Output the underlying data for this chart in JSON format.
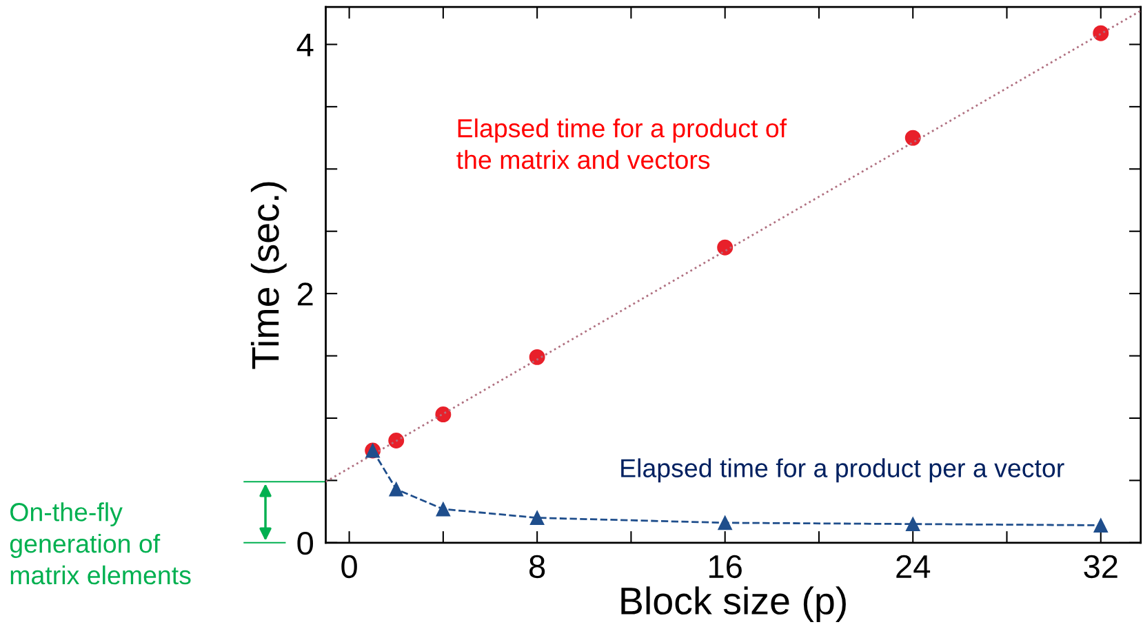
{
  "chart_data": {
    "type": "scatter",
    "xlabel": "Block size (p)",
    "ylabel": "Time (sec.)",
    "xlim": [
      -1,
      33.7
    ],
    "ylim": [
      0,
      4.3
    ],
    "xticks": [
      0,
      8,
      16,
      24,
      32
    ],
    "yticks": [
      0,
      2,
      4
    ],
    "grid": false,
    "series": [
      {
        "type": "line",
        "color": "#b07080",
        "x": [
          -1,
          33.7
        ],
        "values": [
          0.49,
          4.27
        ],
        "marker": "none",
        "line_style": "dotted"
      },
      {
        "color": "#e8202a",
        "x": [
          1,
          2,
          4,
          8,
          16,
          24,
          32
        ],
        "values": [
          0.74,
          0.82,
          1.03,
          1.49,
          2.37,
          3.25,
          4.09
        ],
        "marker": "circle"
      },
      {
        "type": "line",
        "color": "#1f4e8c",
        "x": [
          1,
          2,
          4,
          8,
          16,
          24,
          32
        ],
        "values": [
          0.74,
          0.43,
          0.27,
          0.2,
          0.16,
          0.15,
          0.14
        ],
        "marker": "triangle",
        "line_style": "dashed"
      }
    ],
    "annotations": [
      {
        "text": "Elapsed time for a product of\nthe matrix and vectors"
      },
      {
        "text": "Elapsed time for a product per a vector"
      },
      {
        "text": "On-the-fly\ngeneration of\nmatrix elements"
      }
    ]
  }
}
